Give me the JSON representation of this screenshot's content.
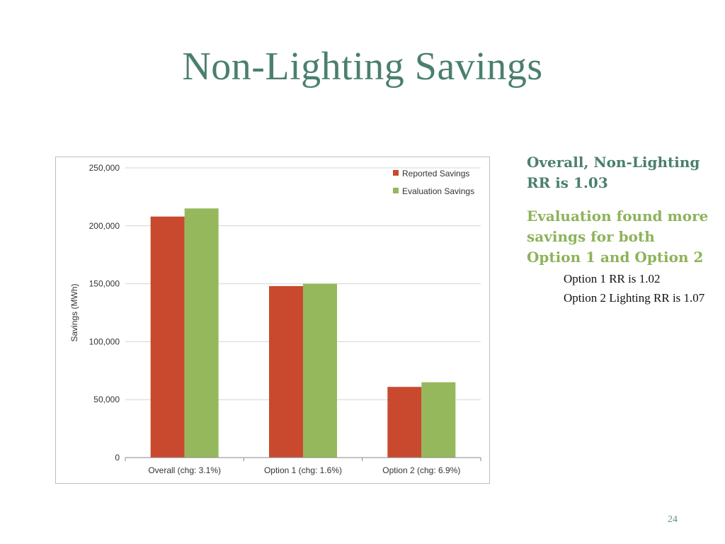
{
  "slide": {
    "title": "Non-Lighting Savings",
    "page_number": "24"
  },
  "side_text": {
    "heading_1": "Overall, Non-Lighting RR is 1.03",
    "heading_2": "Evaluation found more savings for both Option 1 and Option 2",
    "sub_items": [
      "Option 1 RR is 1.02",
      "Option 2 Lighting RR is 1.07"
    ]
  },
  "colors": {
    "reported": "#c9492f",
    "evaluation": "#96b85c",
    "title": "#4a7f6f",
    "accent_green": "#8db35a",
    "grid": "#d4d4d4"
  },
  "chart_data": {
    "type": "bar",
    "title": "",
    "xlabel": "",
    "ylabel": "Savings (MWh)",
    "ylim": [
      0,
      250000
    ],
    "yticks": [
      0,
      50000,
      100000,
      150000,
      200000,
      250000
    ],
    "ytick_labels": [
      "0",
      "50,000",
      "100,000",
      "150,000",
      "200,000",
      "250,000"
    ],
    "categories": [
      "Overall (chg: 3.1%)",
      "Option 1 (chg: 1.6%)",
      "Option 2 (chg: 6.9%)"
    ],
    "series": [
      {
        "name": "Reported Savings",
        "color": "#c9492f",
        "values": [
          208000,
          148000,
          61000
        ]
      },
      {
        "name": "Evaluation Savings",
        "color": "#96b85c",
        "values": [
          215000,
          150000,
          65000
        ]
      }
    ],
    "grid": true,
    "legend": "top-right"
  }
}
